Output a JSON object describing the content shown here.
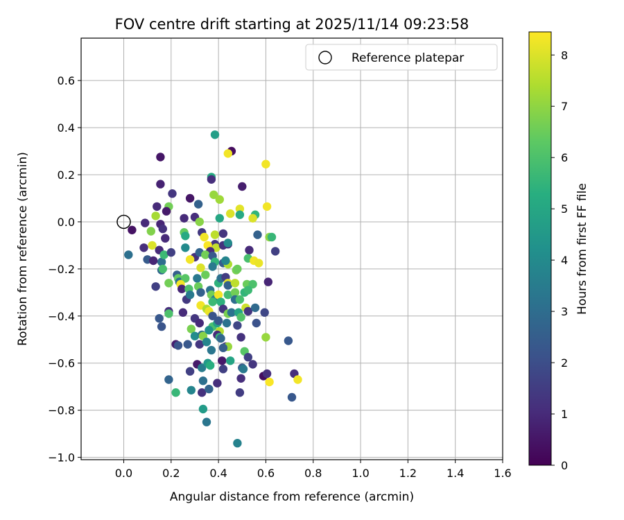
{
  "chart_data": {
    "type": "scatter",
    "title": "FOV centre drift starting at 2025/11/14 09:23:58",
    "xlabel": "Angular distance from reference (arcmin)",
    "ylabel": "Rotation from reference (arcmin)",
    "xlim": [
      -0.18,
      1.6
    ],
    "ylim": [
      -1.01,
      0.78
    ],
    "xticks": [
      0.0,
      0.2,
      0.4,
      0.6,
      0.8,
      1.0,
      1.2,
      1.4,
      1.6
    ],
    "xtick_labels": [
      "0.0",
      "0.2",
      "0.4",
      "0.6",
      "0.8",
      "1.0",
      "1.2",
      "1.4",
      "1.6"
    ],
    "yticks": [
      0.6,
      0.4,
      0.2,
      0.0,
      -0.2,
      -0.4,
      -0.6,
      -0.8,
      -1.0
    ],
    "ytick_labels": [
      "0.6",
      "0.4",
      "0.2",
      "0.0",
      "−0.2",
      "−0.4",
      "−0.6",
      "−0.8",
      "−1.0"
    ],
    "grid": true,
    "legend": {
      "placement": "top-right",
      "entries": [
        "Reference platepar"
      ]
    },
    "reference_point": {
      "x": 0.0,
      "y": 0.0,
      "label": "Reference platepar"
    },
    "colorbar": {
      "label": "Hours from first FF file",
      "range": [
        0,
        8.45
      ],
      "ticks": [
        0,
        1,
        2,
        3,
        4,
        5,
        6,
        7,
        8
      ],
      "tick_labels": [
        "0",
        "1",
        "2",
        "3",
        "4",
        "5",
        "6",
        "7",
        "8"
      ],
      "colormap": "viridis"
    },
    "points": [
      [
        0.155,
        0.275,
        0.5
      ],
      [
        0.455,
        0.3,
        0.3
      ],
      [
        0.385,
        0.37,
        4.7
      ],
      [
        0.44,
        0.29,
        8.3
      ],
      [
        0.6,
        0.245,
        8.3
      ],
      [
        0.37,
        0.19,
        5.2
      ],
      [
        0.37,
        0.18,
        1.1
      ],
      [
        0.155,
        0.16,
        0.8
      ],
      [
        0.205,
        0.12,
        1.3
      ],
      [
        0.5,
        0.15,
        0.7
      ],
      [
        0.38,
        0.115,
        7.1
      ],
      [
        0.405,
        0.095,
        7.2
      ],
      [
        0.28,
        0.1,
        0.5
      ],
      [
        0.14,
        0.065,
        1.0
      ],
      [
        0.19,
        0.065,
        6.6
      ],
      [
        0.605,
        0.065,
        8.3
      ],
      [
        0.49,
        0.055,
        8.1
      ],
      [
        0.315,
        0.075,
        2.6
      ],
      [
        0.45,
        0.035,
        8.0
      ],
      [
        0.49,
        0.03,
        5.1
      ],
      [
        0.555,
        0.03,
        5.5
      ],
      [
        0.545,
        0.015,
        8.0
      ],
      [
        0.18,
        0.045,
        0.6
      ],
      [
        0.255,
        0.015,
        1.0
      ],
      [
        0.3,
        0.02,
        1.1
      ],
      [
        0.32,
        0.0,
        6.9
      ],
      [
        0.405,
        0.015,
        5.0
      ],
      [
        0.09,
        -0.005,
        1.0
      ],
      [
        0.135,
        0.025,
        7.3
      ],
      [
        0.035,
        -0.035,
        0.4
      ],
      [
        0.115,
        -0.04,
        6.8
      ],
      [
        0.155,
        -0.01,
        0.9
      ],
      [
        0.165,
        -0.03,
        1.2
      ],
      [
        0.33,
        -0.045,
        1.4
      ],
      [
        0.255,
        -0.045,
        6.4
      ],
      [
        0.385,
        -0.055,
        7.6
      ],
      [
        0.42,
        -0.05,
        1.3
      ],
      [
        0.565,
        -0.055,
        2.6
      ],
      [
        0.615,
        -0.065,
        7.0
      ],
      [
        0.625,
        -0.065,
        5.6
      ],
      [
        0.175,
        -0.07,
        1.0
      ],
      [
        0.26,
        -0.06,
        5.1
      ],
      [
        0.34,
        -0.065,
        8.3
      ],
      [
        0.385,
        -0.095,
        1.3
      ],
      [
        0.44,
        -0.095,
        1.0
      ],
      [
        0.39,
        -0.11,
        7.7
      ],
      [
        0.085,
        -0.11,
        1.1
      ],
      [
        0.02,
        -0.14,
        3.1
      ],
      [
        0.12,
        -0.1,
        8.0
      ],
      [
        0.15,
        -0.12,
        1.0
      ],
      [
        0.26,
        -0.11,
        4.0
      ],
      [
        0.3,
        -0.15,
        1.2
      ],
      [
        0.355,
        -0.1,
        8.4
      ],
      [
        0.365,
        -0.125,
        1.0
      ],
      [
        0.42,
        -0.1,
        1.2
      ],
      [
        0.44,
        -0.09,
        4.0
      ],
      [
        0.53,
        -0.12,
        1.0
      ],
      [
        0.525,
        -0.155,
        5.9
      ],
      [
        0.55,
        -0.165,
        8.3
      ],
      [
        0.57,
        -0.175,
        8.2
      ],
      [
        0.64,
        -0.125,
        1.6
      ],
      [
        0.1,
        -0.16,
        2.4
      ],
      [
        0.16,
        -0.17,
        3.0
      ],
      [
        0.17,
        -0.14,
        5.7
      ],
      [
        0.2,
        -0.13,
        1.6
      ],
      [
        0.28,
        -0.16,
        8.3
      ],
      [
        0.32,
        -0.13,
        2.7
      ],
      [
        0.325,
        -0.195,
        8.0
      ],
      [
        0.345,
        -0.14,
        6.6
      ],
      [
        0.375,
        -0.145,
        2.3
      ],
      [
        0.385,
        -0.17,
        5.5
      ],
      [
        0.42,
        -0.175,
        2.4
      ],
      [
        0.44,
        -0.18,
        7.4
      ],
      [
        0.43,
        -0.165,
        3.8
      ],
      [
        0.125,
        -0.165,
        0.9
      ],
      [
        0.16,
        -0.205,
        2.8
      ],
      [
        0.165,
        -0.2,
        5.9
      ],
      [
        0.225,
        -0.225,
        2.5
      ],
      [
        0.23,
        -0.24,
        6.4
      ],
      [
        0.235,
        -0.255,
        3.1
      ],
      [
        0.26,
        -0.24,
        6.2
      ],
      [
        0.24,
        -0.265,
        8.3
      ],
      [
        0.31,
        -0.24,
        3.4
      ],
      [
        0.315,
        -0.275,
        6.5
      ],
      [
        0.345,
        -0.225,
        6.5
      ],
      [
        0.375,
        -0.19,
        3.4
      ],
      [
        0.4,
        -0.26,
        5.4
      ],
      [
        0.41,
        -0.24,
        3.1
      ],
      [
        0.43,
        -0.235,
        1.5
      ],
      [
        0.44,
        -0.26,
        8.1
      ],
      [
        0.44,
        -0.27,
        2.6
      ],
      [
        0.47,
        -0.26,
        7.6
      ],
      [
        0.475,
        -0.205,
        6.7
      ],
      [
        0.48,
        -0.2,
        6.5
      ],
      [
        0.52,
        -0.265,
        6.5
      ],
      [
        0.545,
        -0.265,
        6.0
      ],
      [
        0.61,
        -0.255,
        0.9
      ],
      [
        0.135,
        -0.275,
        1.6
      ],
      [
        0.19,
        -0.26,
        6.6
      ],
      [
        0.245,
        -0.285,
        0.9
      ],
      [
        0.275,
        -0.285,
        6.0
      ],
      [
        0.265,
        -0.33,
        1.4
      ],
      [
        0.28,
        -0.31,
        3.4
      ],
      [
        0.325,
        -0.3,
        2.6
      ],
      [
        0.365,
        -0.29,
        3.2
      ],
      [
        0.37,
        -0.31,
        6.6
      ],
      [
        0.385,
        -0.33,
        3.6
      ],
      [
        0.4,
        -0.31,
        8.3
      ],
      [
        0.41,
        -0.34,
        5.4
      ],
      [
        0.44,
        -0.31,
        5.8
      ],
      [
        0.47,
        -0.3,
        6.6
      ],
      [
        0.47,
        -0.33,
        3.0
      ],
      [
        0.49,
        -0.33,
        5.9
      ],
      [
        0.51,
        -0.3,
        5.5
      ],
      [
        0.525,
        -0.29,
        5.7
      ],
      [
        0.325,
        -0.355,
        8.3
      ],
      [
        0.35,
        -0.37,
        7.4
      ],
      [
        0.36,
        -0.38,
        8.2
      ],
      [
        0.375,
        -0.34,
        5.7
      ],
      [
        0.42,
        -0.37,
        1.3
      ],
      [
        0.44,
        -0.39,
        6.7
      ],
      [
        0.455,
        -0.385,
        3.2
      ],
      [
        0.485,
        -0.385,
        4.9
      ],
      [
        0.515,
        -0.365,
        7.8
      ],
      [
        0.525,
        -0.38,
        1.3
      ],
      [
        0.555,
        -0.365,
        2.9
      ],
      [
        0.595,
        -0.385,
        1.8
      ],
      [
        0.19,
        -0.38,
        1.1
      ],
      [
        0.19,
        -0.39,
        6.0
      ],
      [
        0.15,
        -0.41,
        2.3
      ],
      [
        0.16,
        -0.445,
        2.2
      ],
      [
        0.25,
        -0.385,
        1.0
      ],
      [
        0.3,
        -0.41,
        1.3
      ],
      [
        0.32,
        -0.43,
        1.0
      ],
      [
        0.375,
        -0.4,
        2.2
      ],
      [
        0.375,
        -0.445,
        5.9
      ],
      [
        0.395,
        -0.43,
        4.8
      ],
      [
        0.405,
        -0.465,
        7.5
      ],
      [
        0.4,
        -0.42,
        2.3
      ],
      [
        0.435,
        -0.43,
        3.2
      ],
      [
        0.48,
        -0.44,
        1.8
      ],
      [
        0.495,
        -0.405,
        6.1
      ],
      [
        0.56,
        -0.43,
        2.1
      ],
      [
        0.285,
        -0.455,
        6.7
      ],
      [
        0.3,
        -0.485,
        4.1
      ],
      [
        0.33,
        -0.48,
        3.0
      ],
      [
        0.335,
        -0.485,
        6.9
      ],
      [
        0.36,
        -0.46,
        4.2
      ],
      [
        0.395,
        -0.48,
        1.0
      ],
      [
        0.405,
        -0.49,
        5.6
      ],
      [
        0.41,
        -0.495,
        2.8
      ],
      [
        0.43,
        -0.53,
        1.1
      ],
      [
        0.44,
        -0.53,
        7.1
      ],
      [
        0.495,
        -0.49,
        1.2
      ],
      [
        0.6,
        -0.49,
        7.1
      ],
      [
        0.695,
        -0.505,
        2.3
      ],
      [
        0.22,
        -0.52,
        0.7
      ],
      [
        0.23,
        -0.525,
        2.2
      ],
      [
        0.27,
        -0.52,
        2.3
      ],
      [
        0.32,
        -0.52,
        1.3
      ],
      [
        0.35,
        -0.51,
        3.8
      ],
      [
        0.37,
        -0.545,
        3.3
      ],
      [
        0.42,
        -0.535,
        2.5
      ],
      [
        0.51,
        -0.55,
        6.2
      ],
      [
        0.525,
        -0.575,
        1.6
      ],
      [
        0.545,
        -0.605,
        1.3
      ],
      [
        0.31,
        -0.605,
        0.6
      ],
      [
        0.33,
        -0.62,
        3.5
      ],
      [
        0.355,
        -0.6,
        4.5
      ],
      [
        0.365,
        -0.61,
        5.3
      ],
      [
        0.415,
        -0.59,
        0.6
      ],
      [
        0.42,
        -0.625,
        1.6
      ],
      [
        0.45,
        -0.59,
        4.9
      ],
      [
        0.5,
        -0.62,
        2.4
      ],
      [
        0.505,
        -0.625,
        3.4
      ],
      [
        0.28,
        -0.635,
        1.6
      ],
      [
        0.335,
        -0.675,
        3.1
      ],
      [
        0.395,
        -0.685,
        1.1
      ],
      [
        0.495,
        -0.665,
        1.1
      ],
      [
        0.59,
        -0.655,
        0.3
      ],
      [
        0.605,
        -0.645,
        1.1
      ],
      [
        0.615,
        -0.68,
        8.4
      ],
      [
        0.72,
        -0.645,
        1.1
      ],
      [
        0.735,
        -0.67,
        8.3
      ],
      [
        0.19,
        -0.67,
        2.7
      ],
      [
        0.22,
        -0.725,
        5.6
      ],
      [
        0.285,
        -0.715,
        3.8
      ],
      [
        0.33,
        -0.725,
        1.2
      ],
      [
        0.36,
        -0.71,
        2.7
      ],
      [
        0.49,
        -0.725,
        1.5
      ],
      [
        0.71,
        -0.745,
        2.3
      ],
      [
        0.335,
        -0.795,
        4.6
      ],
      [
        0.35,
        -0.85,
        3.3
      ],
      [
        0.48,
        -0.94,
        3.7
      ]
    ]
  }
}
